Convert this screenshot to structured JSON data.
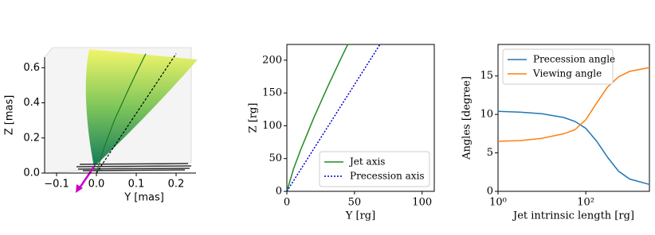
{
  "chart_data": [
    {
      "type": "surface3d",
      "x_label": "Y [mas]",
      "y_label": "Z [mas]",
      "xlim": [
        -0.13,
        0.25
      ],
      "ylim": [
        0,
        0.66
      ],
      "xticks": [
        {
          "value": -0.1,
          "label": "−0.1"
        },
        {
          "value": 0,
          "label": "0.0"
        },
        0.1,
        0.2
      ],
      "yticks": [
        {
          "value": 0,
          "label": "0.0"
        },
        0.2,
        0.4,
        0.6
      ],
      "series": [
        {
          "color": "#1f7a1f",
          "style": "solid",
          "x": [
            0,
            0.02,
            0.045,
            0.075,
            0.1,
            0.124
          ],
          "values": [
            0,
            0.15,
            0.3,
            0.45,
            0.57,
            0.68
          ]
        },
        {
          "color": "#000000",
          "style": "dashed",
          "x": [
            0,
            0.2
          ],
          "values": [
            0,
            0.68
          ]
        }
      ]
    },
    {
      "type": "line",
      "x_label": "Y [rg]",
      "y_label": "Z [rg]",
      "xlim": [
        0,
        109
      ],
      "ylim": [
        0,
        224
      ],
      "xticks": [
        0,
        50,
        100
      ],
      "yticks": [
        0,
        50,
        100,
        150,
        200
      ],
      "legend": "lower right",
      "series": [
        {
          "name": "Jet axis",
          "color": "#228b22",
          "style": "solid",
          "x": [
            0,
            5,
            10,
            20,
            30,
            40,
            45
          ],
          "values": [
            0,
            34.6,
            62.4,
            112.4,
            158.7,
            202.7,
            224
          ]
        },
        {
          "name": "Precession axis",
          "color": "#0000cc",
          "style": "dotted",
          "x": [
            0,
            68.8
          ],
          "values": [
            0,
            224
          ]
        }
      ]
    },
    {
      "type": "line",
      "x_label": "Jet intrinsic length [rg]",
      "y_label": "Angles [degree]",
      "xlog": true,
      "xlim": [
        1,
        2818
      ],
      "ylim": [
        0,
        19.1
      ],
      "xticks": [
        {
          "value": 1,
          "label": "10⁰"
        },
        {
          "value": 100,
          "label": "10²"
        }
      ],
      "yticks": [
        0,
        5,
        10,
        15
      ],
      "legend": "upper left",
      "series": [
        {
          "name": "Precession angle",
          "color": "#1f77b4",
          "style": "solid",
          "x": [
            1,
            3.16,
            10,
            31.6,
            56.2,
            100,
            178,
            316,
            562,
            1000,
            2818
          ],
          "values": [
            10.4,
            10.3,
            10.1,
            9.6,
            9.1,
            8.2,
            6.5,
            4.4,
            2.6,
            1.6,
            0.9
          ]
        },
        {
          "name": "Viewing angle",
          "color": "#ff7f0e",
          "style": "solid",
          "x": [
            1,
            3.16,
            10,
            31.6,
            56.2,
            100,
            178,
            316,
            562,
            1000,
            2818
          ],
          "values": [
            6.5,
            6.6,
            6.9,
            7.5,
            8.0,
            9.3,
            11.5,
            13.6,
            14.9,
            15.6,
            16.1
          ]
        }
      ]
    }
  ]
}
